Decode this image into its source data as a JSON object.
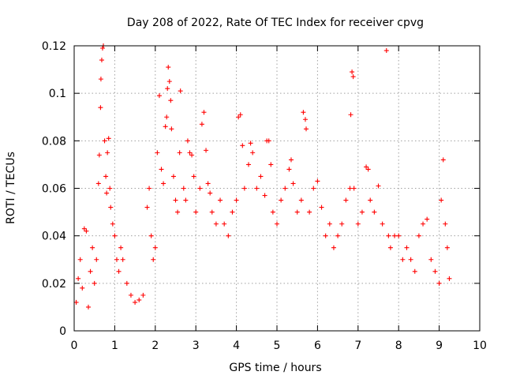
{
  "chart_data": {
    "type": "scatter",
    "title": "Day 208 of 2022, Rate Of TEC Index for receiver cpvg",
    "xlabel": "GPS time / hours",
    "ylabel": "ROTI / TECUs",
    "xlim": [
      0,
      10
    ],
    "ylim": [
      0,
      0.12
    ],
    "x_ticks": [
      "0",
      "1",
      "2",
      "3",
      "4",
      "5",
      "6",
      "7",
      "8",
      "9",
      "10"
    ],
    "y_ticks": [
      "0",
      "0.02",
      "0.04",
      "0.06",
      "0.08",
      "0.1",
      "0.12"
    ],
    "grid": true,
    "marker": "+",
    "color": "#ff0000",
    "series": [
      {
        "points": [
          [
            0.05,
            0.012
          ],
          [
            0.1,
            0.022
          ],
          [
            0.15,
            0.03
          ],
          [
            0.2,
            0.018
          ],
          [
            0.25,
            0.043
          ],
          [
            0.3,
            0.042
          ],
          [
            0.35,
            0.01
          ],
          [
            0.4,
            0.025
          ],
          [
            0.45,
            0.035
          ],
          [
            0.5,
            0.02
          ],
          [
            0.55,
            0.03
          ],
          [
            0.6,
            0.062
          ],
          [
            0.62,
            0.074
          ],
          [
            0.65,
            0.094
          ],
          [
            0.66,
            0.106
          ],
          [
            0.68,
            0.114
          ],
          [
            0.7,
            0.119
          ],
          [
            0.72,
            0.12
          ],
          [
            0.75,
            0.08
          ],
          [
            0.78,
            0.065
          ],
          [
            0.8,
            0.058
          ],
          [
            0.82,
            0.075
          ],
          [
            0.85,
            0.081
          ],
          [
            0.88,
            0.06
          ],
          [
            0.9,
            0.052
          ],
          [
            0.95,
            0.045
          ],
          [
            1.0,
            0.04
          ],
          [
            1.05,
            0.03
          ],
          [
            1.1,
            0.025
          ],
          [
            1.15,
            0.035
          ],
          [
            1.2,
            0.03
          ],
          [
            1.3,
            0.02
          ],
          [
            1.4,
            0.015
          ],
          [
            1.5,
            0.012
          ],
          [
            1.6,
            0.013
          ],
          [
            1.7,
            0.015
          ],
          [
            1.8,
            0.052
          ],
          [
            1.85,
            0.06
          ],
          [
            1.9,
            0.04
          ],
          [
            1.95,
            0.03
          ],
          [
            2.0,
            0.035
          ],
          [
            2.05,
            0.075
          ],
          [
            2.1,
            0.099
          ],
          [
            2.15,
            0.068
          ],
          [
            2.2,
            0.062
          ],
          [
            2.25,
            0.086
          ],
          [
            2.28,
            0.09
          ],
          [
            2.3,
            0.102
          ],
          [
            2.32,
            0.111
          ],
          [
            2.35,
            0.105
          ],
          [
            2.38,
            0.097
          ],
          [
            2.4,
            0.085
          ],
          [
            2.45,
            0.065
          ],
          [
            2.5,
            0.055
          ],
          [
            2.55,
            0.05
          ],
          [
            2.6,
            0.075
          ],
          [
            2.62,
            0.101
          ],
          [
            2.7,
            0.06
          ],
          [
            2.75,
            0.055
          ],
          [
            2.8,
            0.08
          ],
          [
            2.85,
            0.075
          ],
          [
            2.9,
            0.074
          ],
          [
            2.95,
            0.065
          ],
          [
            3.0,
            0.05
          ],
          [
            3.1,
            0.06
          ],
          [
            3.15,
            0.087
          ],
          [
            3.2,
            0.092
          ],
          [
            3.25,
            0.076
          ],
          [
            3.3,
            0.062
          ],
          [
            3.35,
            0.058
          ],
          [
            3.4,
            0.05
          ],
          [
            3.5,
            0.045
          ],
          [
            3.6,
            0.055
          ],
          [
            3.7,
            0.045
          ],
          [
            3.8,
            0.04
          ],
          [
            3.9,
            0.05
          ],
          [
            4.0,
            0.055
          ],
          [
            4.05,
            0.09
          ],
          [
            4.1,
            0.091
          ],
          [
            4.15,
            0.078
          ],
          [
            4.2,
            0.06
          ],
          [
            4.3,
            0.07
          ],
          [
            4.35,
            0.079
          ],
          [
            4.4,
            0.075
          ],
          [
            4.5,
            0.06
          ],
          [
            4.6,
            0.065
          ],
          [
            4.7,
            0.057
          ],
          [
            4.75,
            0.08
          ],
          [
            4.8,
            0.08
          ],
          [
            4.85,
            0.07
          ],
          [
            4.9,
            0.05
          ],
          [
            5.0,
            0.045
          ],
          [
            5.1,
            0.055
          ],
          [
            5.2,
            0.06
          ],
          [
            5.3,
            0.068
          ],
          [
            5.35,
            0.072
          ],
          [
            5.4,
            0.062
          ],
          [
            5.5,
            0.05
          ],
          [
            5.6,
            0.055
          ],
          [
            5.65,
            0.092
          ],
          [
            5.7,
            0.089
          ],
          [
            5.72,
            0.085
          ],
          [
            5.8,
            0.05
          ],
          [
            5.9,
            0.06
          ],
          [
            6.0,
            0.063
          ],
          [
            6.1,
            0.052
          ],
          [
            6.2,
            0.04
          ],
          [
            6.3,
            0.045
          ],
          [
            6.4,
            0.035
          ],
          [
            6.5,
            0.04
          ],
          [
            6.6,
            0.045
          ],
          [
            6.7,
            0.055
          ],
          [
            6.8,
            0.06
          ],
          [
            6.82,
            0.091
          ],
          [
            6.85,
            0.109
          ],
          [
            6.88,
            0.107
          ],
          [
            6.9,
            0.06
          ],
          [
            7.0,
            0.045
          ],
          [
            7.1,
            0.05
          ],
          [
            7.2,
            0.069
          ],
          [
            7.25,
            0.068
          ],
          [
            7.3,
            0.055
          ],
          [
            7.4,
            0.05
          ],
          [
            7.5,
            0.061
          ],
          [
            7.6,
            0.045
          ],
          [
            7.7,
            0.118
          ],
          [
            7.75,
            0.04
          ],
          [
            7.8,
            0.035
          ],
          [
            7.9,
            0.04
          ],
          [
            8.0,
            0.04
          ],
          [
            8.1,
            0.03
          ],
          [
            8.2,
            0.035
          ],
          [
            8.3,
            0.03
          ],
          [
            8.4,
            0.025
          ],
          [
            8.5,
            0.04
          ],
          [
            8.6,
            0.045
          ],
          [
            8.7,
            0.047
          ],
          [
            8.8,
            0.03
          ],
          [
            8.9,
            0.025
          ],
          [
            9.0,
            0.02
          ],
          [
            9.05,
            0.055
          ],
          [
            9.1,
            0.072
          ],
          [
            9.15,
            0.045
          ],
          [
            9.2,
            0.035
          ],
          [
            9.25,
            0.022
          ]
        ]
      }
    ]
  }
}
